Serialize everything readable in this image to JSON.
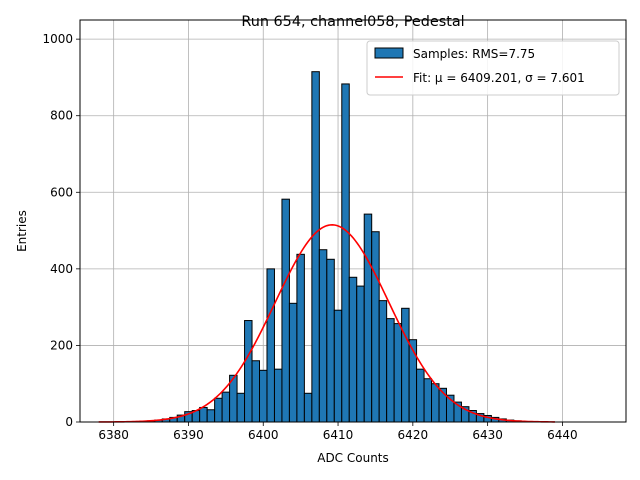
{
  "chart_data": {
    "type": "bar",
    "title": "Run 654, channel058, Pedestal",
    "xlabel": "ADC Counts",
    "ylabel": "Entries",
    "xlim": [
      6375.5,
      6448.5
    ],
    "ylim": [
      0,
      1050
    ],
    "xticks": [
      6380,
      6390,
      6400,
      6410,
      6420,
      6430,
      6440
    ],
    "yticks": [
      0,
      200,
      400,
      600,
      800,
      1000
    ],
    "grid": true,
    "legend_position": "top-right",
    "colors": {
      "bars": "#1f77b4",
      "bar_edge": "#000000",
      "fit": "#ff0000",
      "grid": "#b0b0b0"
    },
    "series": [
      {
        "name": "Samples: RMS=7.75",
        "kind": "histogram",
        "bins": [
          {
            "x": 6384,
            "y": 2
          },
          {
            "x": 6385,
            "y": 3
          },
          {
            "x": 6386,
            "y": 5
          },
          {
            "x": 6387,
            "y": 8
          },
          {
            "x": 6388,
            "y": 12
          },
          {
            "x": 6389,
            "y": 18
          },
          {
            "x": 6390,
            "y": 27
          },
          {
            "x": 6391,
            "y": 30
          },
          {
            "x": 6392,
            "y": 38
          },
          {
            "x": 6393,
            "y": 32
          },
          {
            "x": 6394,
            "y": 62
          },
          {
            "x": 6395,
            "y": 78
          },
          {
            "x": 6396,
            "y": 122
          },
          {
            "x": 6397,
            "y": 75
          },
          {
            "x": 6398,
            "y": 265
          },
          {
            "x": 6399,
            "y": 160
          },
          {
            "x": 6400,
            "y": 135
          },
          {
            "x": 6401,
            "y": 400
          },
          {
            "x": 6402,
            "y": 138
          },
          {
            "x": 6403,
            "y": 582
          },
          {
            "x": 6404,
            "y": 310
          },
          {
            "x": 6405,
            "y": 438
          },
          {
            "x": 6406,
            "y": 75
          },
          {
            "x": 6407,
            "y": 915
          },
          {
            "x": 6408,
            "y": 450
          },
          {
            "x": 6409,
            "y": 425
          },
          {
            "x": 6410,
            "y": 292
          },
          {
            "x": 6411,
            "y": 883
          },
          {
            "x": 6412,
            "y": 378
          },
          {
            "x": 6413,
            "y": 355
          },
          {
            "x": 6414,
            "y": 543
          },
          {
            "x": 6415,
            "y": 497
          },
          {
            "x": 6416,
            "y": 317
          },
          {
            "x": 6417,
            "y": 270
          },
          {
            "x": 6418,
            "y": 257
          },
          {
            "x": 6419,
            "y": 297
          },
          {
            "x": 6420,
            "y": 215
          },
          {
            "x": 6421,
            "y": 138
          },
          {
            "x": 6422,
            "y": 113
          },
          {
            "x": 6423,
            "y": 100
          },
          {
            "x": 6424,
            "y": 88
          },
          {
            "x": 6425,
            "y": 70
          },
          {
            "x": 6426,
            "y": 52
          },
          {
            "x": 6427,
            "y": 40
          },
          {
            "x": 6428,
            "y": 30
          },
          {
            "x": 6429,
            "y": 22
          },
          {
            "x": 6430,
            "y": 17
          },
          {
            "x": 6431,
            "y": 12
          },
          {
            "x": 6432,
            "y": 8
          },
          {
            "x": 6433,
            "y": 5
          },
          {
            "x": 6434,
            "y": 3
          }
        ]
      },
      {
        "name": "Fit: μ = 6409.201, σ = 7.601",
        "kind": "gaussian",
        "mu": 6409.201,
        "sigma": 7.601,
        "amplitude": 515,
        "x_range": [
          6378,
          6439
        ]
      }
    ]
  }
}
